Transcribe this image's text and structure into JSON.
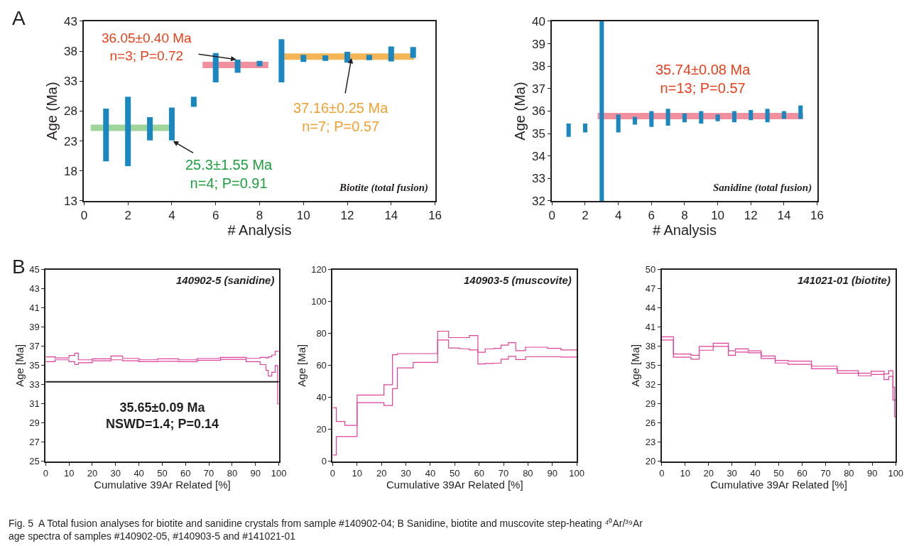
{
  "chart_data": [
    {
      "type": "bar",
      "xlabel": "# Analysis",
      "ylabel": "Age (Ma)",
      "xlim": [
        0,
        16
      ],
      "xticks": [
        0,
        2,
        4,
        6,
        8,
        10,
        12,
        14,
        16
      ],
      "ylim": [
        13,
        43
      ],
      "yticks": [
        13,
        18,
        23,
        28,
        33,
        38,
        43
      ],
      "x": [
        1,
        2,
        3,
        4,
        5,
        6,
        7,
        8,
        9,
        10,
        11,
        12,
        13,
        14,
        15
      ],
      "series": [
        {
          "type": "bar",
          "color": "#1a87c0",
          "base": [
            19.6,
            18.8,
            23.1,
            23.1,
            28.7,
            32.8,
            34.4,
            35.5,
            32.8,
            36.2,
            36.4,
            36.1,
            36.5,
            36.3,
            36.9
          ],
          "values": [
            8.8,
            11.6,
            3.9,
            5.5,
            1.7,
            4.9,
            2.2,
            0.9,
            7.2,
            1.2,
            0.9,
            1.8,
            0.9,
            2.5,
            1.8
          ]
        },
        {
          "type": "line",
          "color": "#f0909f",
          "x": [
            5.4,
            8.4
          ],
          "values": [
            35.7,
            35.7
          ]
        },
        {
          "type": "line",
          "color": "#f5b555",
          "x": [
            9.05,
            15.05
          ],
          "values": [
            37.1,
            37.1
          ]
        },
        {
          "type": "line",
          "color": "#9fd49a",
          "x": [
            0.3,
            3.9
          ],
          "values": [
            25.2,
            25.2
          ]
        }
      ],
      "annotations": [
        "A",
        {
          "text": "36.05±0.40 Ma\nn=3; P=0.72",
          "x": 7,
          "y": 36.6
        },
        {
          "text": "37.16±0.25 Ma\nn=7; P=0.57",
          "x": 12.2,
          "y": 37.1
        },
        {
          "text": "25.3±1.55 Ma\nn=4; P=0.91",
          "x": 4,
          "y": 23.1
        },
        "Biotite (total fusion)"
      ]
    },
    {
      "type": "bar",
      "xlabel": "# Analysis",
      "ylabel": "Age (Ma)",
      "xlim": [
        0,
        16
      ],
      "xticks": [
        0,
        2,
        4,
        6,
        8,
        10,
        12,
        14,
        16
      ],
      "ylim": [
        32,
        40
      ],
      "yticks": [
        32,
        33,
        34,
        35,
        36,
        37,
        38,
        39,
        40
      ],
      "x": [
        1,
        2,
        3,
        4,
        5,
        6,
        7,
        8,
        9,
        10,
        11,
        12,
        13,
        14,
        15
      ],
      "series": [
        {
          "type": "line",
          "color": "#f0909f",
          "x": [
            2.75,
            15.15
          ],
          "values": [
            35.78,
            35.78
          ]
        },
        {
          "type": "bar",
          "color": "#1a87c0",
          "base": [
            34.85,
            35.05,
            32,
            35.05,
            35.4,
            35.3,
            35.35,
            35.5,
            35.45,
            35.55,
            35.5,
            35.6,
            35.5,
            35.65,
            35.65
          ],
          "values": [
            0.6,
            0.4,
            8,
            0.8,
            0.35,
            0.7,
            0.75,
            0.4,
            0.55,
            0.3,
            0.5,
            0.45,
            0.6,
            0.35,
            0.6
          ]
        }
      ],
      "annotations": [
        "35.74±0.08 Ma\nn=13; P=0.57",
        "Sanidine (total fusion)"
      ]
    },
    {
      "type": "step",
      "xlabel": "Cumulative 39Ar Related [%]",
      "ylabel": "Age [Ma]",
      "xlim": [
        0,
        100
      ],
      "xticks": [
        0,
        10,
        20,
        30,
        40,
        50,
        60,
        70,
        80,
        90,
        100
      ],
      "ylim": [
        25,
        45
      ],
      "yticks": [
        25,
        27,
        29,
        31,
        33,
        35,
        37,
        39,
        41,
        43,
        45
      ],
      "x": [
        0,
        4,
        10,
        12.5,
        14,
        20,
        28,
        33,
        40,
        48,
        57,
        65,
        75,
        86,
        92,
        94.5,
        95.5,
        97,
        98.5,
        99.5,
        100
      ],
      "series": [
        {
          "color": "#e0409a",
          "values": [
            35.9,
            35.8,
            36.05,
            36.3,
            35.6,
            35.7,
            36.0,
            35.75,
            35.6,
            35.7,
            35.6,
            35.75,
            35.85,
            35.75,
            35.85,
            35.8,
            35.9,
            36.1,
            36.5,
            36.5,
            36.5
          ]
        },
        {
          "color": "#e0409a",
          "values": [
            35.4,
            35.6,
            35.4,
            35.1,
            35.3,
            35.5,
            35.6,
            35.5,
            35.4,
            35.45,
            35.4,
            35.55,
            35.65,
            35.4,
            35.1,
            34.5,
            33.9,
            34.3,
            35.0,
            31.0,
            31.0
          ]
        }
      ],
      "ref_lines": [
        {
          "axis": "y",
          "value": 33.3,
          "color": "#231f20"
        }
      ],
      "annotations": [
        "B",
        "140902-5 (sanidine)",
        "35.65±0.09 Ma\nNSWD=1.4; P=0.14"
      ]
    },
    {
      "type": "step",
      "xlabel": "Cumulative 39Ar Related [%]",
      "ylabel": "Age [Ma]",
      "xlim": [
        0,
        100
      ],
      "xticks": [
        0,
        10,
        20,
        30,
        40,
        50,
        60,
        70,
        80,
        90,
        100
      ],
      "ylim": [
        0,
        120
      ],
      "yticks": [
        0,
        20,
        40,
        60,
        80,
        100,
        120
      ],
      "x": [
        0,
        1.5,
        5,
        10,
        21,
        24.5,
        26.5,
        33,
        43,
        47.5,
        52,
        56,
        59.5,
        62.5,
        66,
        69,
        72,
        75,
        79,
        83.5,
        88,
        93.5,
        100
      ],
      "series": [
        {
          "color": "#e0409a",
          "values": [
            33.5,
            25,
            22.5,
            41.5,
            48,
            66.8,
            67.5,
            67.5,
            81.5,
            77.5,
            77.5,
            78.8,
            68.3,
            70.5,
            70.8,
            72.8,
            74.3,
            69.3,
            71.5,
            71.5,
            70.8,
            69.8,
            69.8
          ]
        },
        {
          "color": "#e0409a",
          "values": [
            4,
            15.5,
            15.5,
            36.8,
            35,
            45.5,
            58.5,
            62,
            76,
            71,
            70.5,
            69.8,
            61,
            61.3,
            61.5,
            64,
            65.8,
            63.8,
            65.5,
            65.5,
            65.5,
            65.3,
            65.3
          ]
        }
      ],
      "annotations": [
        "140903-5 (muscovite)"
      ]
    },
    {
      "type": "step",
      "xlabel": "Cumulative 39Ar Related [%]",
      "ylabel": "Age [Ma]",
      "xlim": [
        0,
        100
      ],
      "xticks": [
        0,
        10,
        20,
        30,
        40,
        50,
        60,
        70,
        80,
        90,
        100
      ],
      "ylim": [
        20,
        50
      ],
      "yticks": [
        20,
        23,
        26,
        29,
        32,
        35,
        38,
        41,
        44,
        47,
        50
      ],
      "x": [
        0,
        5,
        12.5,
        16,
        22,
        28.5,
        31.5,
        37,
        42.5,
        48.5,
        54,
        64,
        75,
        84,
        89.5,
        95,
        97,
        98.8,
        99.5,
        100
      ],
      "series": [
        {
          "color": "#e0409a",
          "values": [
            39.5,
            36.8,
            36.6,
            38.0,
            38.5,
            37.3,
            37.6,
            37.3,
            36.5,
            35.8,
            35.7,
            34.9,
            34.2,
            33.8,
            34.1,
            33.7,
            34.2,
            31.6,
            29.6,
            29.6
          ]
        },
        {
          "color": "#e0409a",
          "values": [
            39.0,
            36.3,
            36.0,
            37.4,
            38.0,
            36.6,
            37.1,
            37.0,
            36.1,
            35.4,
            35.2,
            34.5,
            33.8,
            33.4,
            33.6,
            32.8,
            33.3,
            29.6,
            27.0,
            27.0
          ]
        }
      ],
      "annotations": [
        "141021-01 (biotite)",
        "Fig. 5  A Total fusion analyses for biotite and sanidine crystals from sample #140902-04; B Sanidine, biotite and muscovite step-heating ⁴⁰Ar/³⁹Ar\nage spectra of samples #140902-05, #140903-5 and #141021-01"
      ]
    }
  ]
}
